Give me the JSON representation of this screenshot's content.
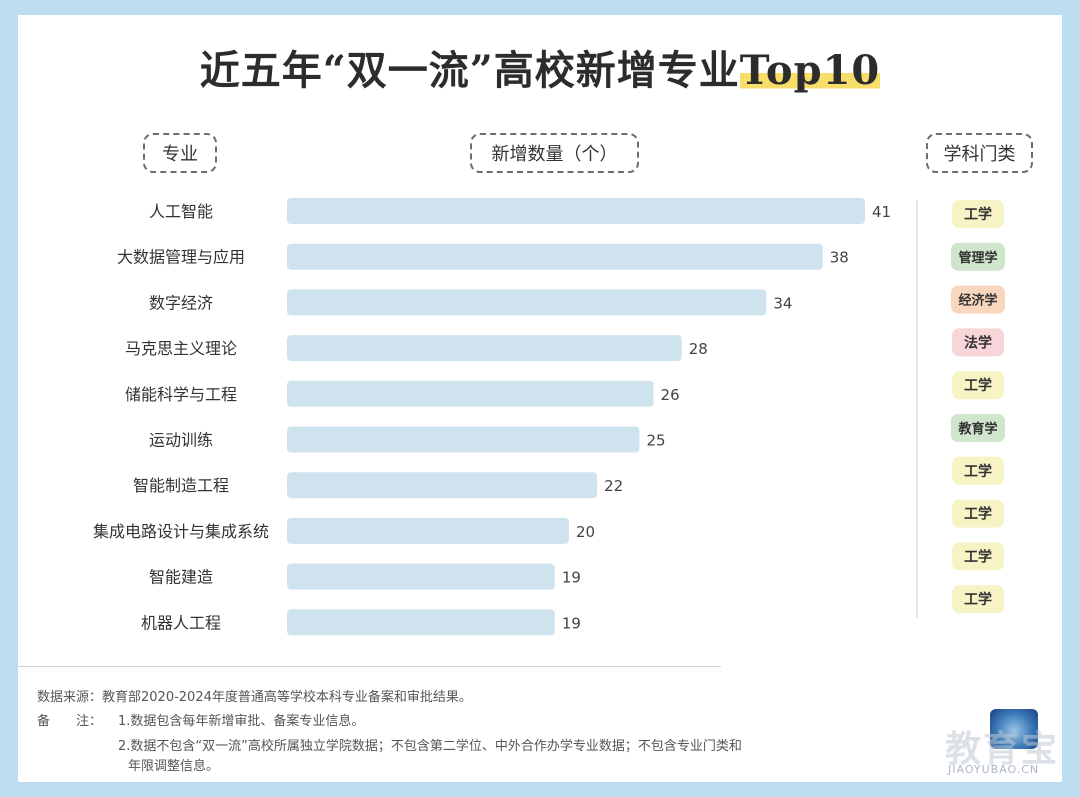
{
  "title_main": "近五年“双一流”高校新增专业",
  "title_hl": "Top10",
  "headers": {
    "major": "专业",
    "count": "新增数量（个）",
    "category": "学科门类"
  },
  "colors": {
    "bar": "#cfe3ef",
    "gongxue": "#f6f4c4",
    "guanlixue": "#cfe5cc",
    "jingjixue": "#f9d7bf",
    "faxue": "#f8d5d8",
    "jiaoyuxue": "#cfe5cc"
  },
  "chart_data": {
    "type": "bar",
    "orientation": "horizontal",
    "categories": [
      "人工智能",
      "大数据管理与应用",
      "数字经济",
      "马克思主义理论",
      "储能科学与工程",
      "运动训练",
      "智能制造工程",
      "集成电路设计与集成系统",
      "智能建造",
      "机器人工程"
    ],
    "values": [
      41,
      38,
      34,
      28,
      26,
      25,
      22,
      20,
      19,
      19
    ],
    "disciplines": [
      "工学",
      "管理学",
      "经济学",
      "法学",
      "工学",
      "教育学",
      "工学",
      "工学",
      "工学",
      "工学"
    ],
    "xlim": [
      0,
      41
    ],
    "grid": false,
    "legend": "none"
  },
  "footer": {
    "source": "数据来源：教育部2020-2024年度普通高等学校本科专业备案和审批结果。",
    "note_label": "备　　注：",
    "note1": "1.数据包含每年新增审批、备案专业信息。",
    "note2": "2.数据不包含“双一流”高校所属独立学院数据；不包含第二学位、中外合作办学专业数据；不包含专业门类和",
    "note3": "年限调整信息。"
  },
  "watermark": {
    "main": "教育宝",
    "sub": "JIAOYUBAO.CN"
  }
}
